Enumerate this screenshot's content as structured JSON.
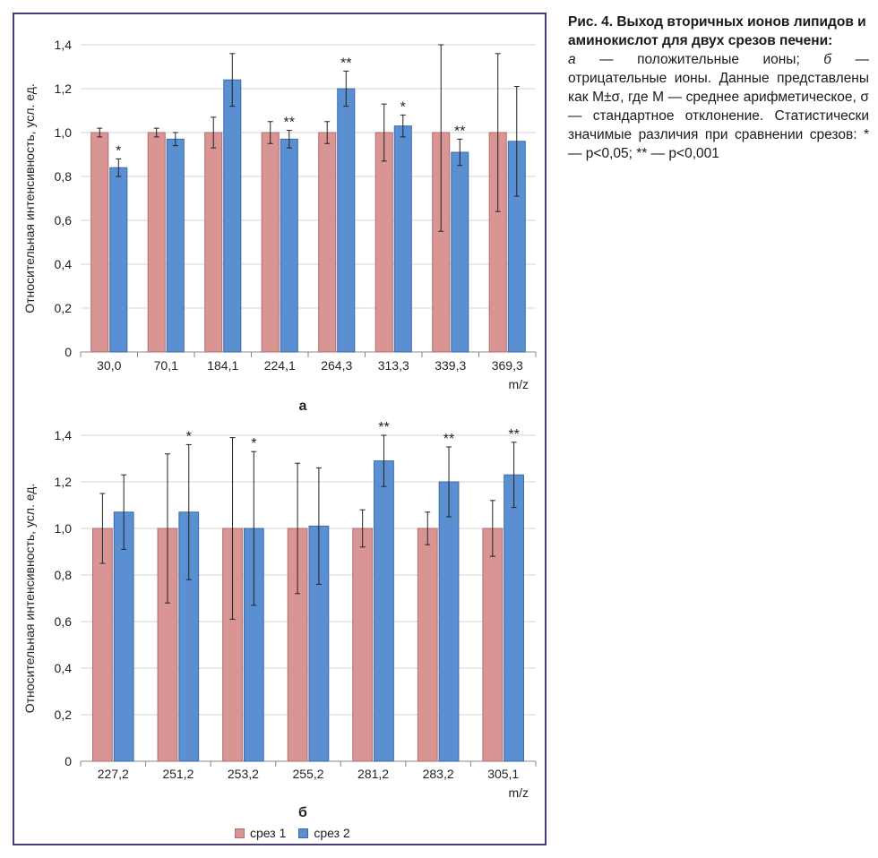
{
  "colors": {
    "series1": "#d99593",
    "series1_edge": "#b36d6b",
    "series2": "#5a8fd2",
    "series2_edge": "#3d6aa8",
    "frame": "#4a3d7a"
  },
  "caption": {
    "title": "Рис. 4. Выход вторичных ионов липидов и аминокислот для двух срезов печени:",
    "part_a_label": "а",
    "part_a_text": " — положительные ионы; ",
    "part_b_label": "б",
    "part_b_text": " — отрицательные ионы. Данные представлены как M±σ, где M — среднее арифметическое, σ — стандартное отклонение. Статистически значимые различия при сравнении срезов: * — p<0,05; ** — p<0,001"
  },
  "legend": [
    {
      "name": "срез 1"
    },
    {
      "name": "срез 2"
    }
  ],
  "chart_data": [
    {
      "type": "bar",
      "panel_label": "а",
      "ylabel": "Относительная интенсивность, усл. ед.",
      "xlabel": "m/z",
      "ylim": [
        0,
        1.4
      ],
      "yticks": [
        "0",
        "0,2",
        "0,4",
        "0,6",
        "0,8",
        "1,0",
        "1,2",
        "1,4"
      ],
      "grid": true,
      "categories": [
        "30,0",
        "70,1",
        "184,1",
        "224,1",
        "264,3",
        "313,3",
        "339,3",
        "369,3"
      ],
      "series": [
        {
          "name": "срез 1",
          "values": [
            1.0,
            1.0,
            1.0,
            1.0,
            1.0,
            1.0,
            1.0,
            1.0
          ],
          "errors": [
            0.02,
            0.02,
            0.07,
            0.05,
            0.05,
            0.13,
            0.45,
            0.36
          ]
        },
        {
          "name": "срез 2",
          "values": [
            0.84,
            0.97,
            1.24,
            0.97,
            1.2,
            1.03,
            0.91,
            0.96
          ],
          "errors": [
            0.04,
            0.03,
            0.12,
            0.04,
            0.08,
            0.05,
            0.06,
            0.25
          ]
        }
      ],
      "significance": [
        "*",
        "",
        "",
        "**",
        "**",
        "*",
        "**",
        ""
      ]
    },
    {
      "type": "bar",
      "panel_label": "б",
      "ylabel": "Относительная интенсивность, усл. ед.",
      "xlabel": "m/z",
      "ylim": [
        0,
        1.4
      ],
      "yticks": [
        "0",
        "0,2",
        "0,4",
        "0,6",
        "0,8",
        "1,0",
        "1,2",
        "1,4"
      ],
      "grid": true,
      "categories": [
        "227,2",
        "251,2",
        "253,2",
        "255,2",
        "281,2",
        "283,2",
        "305,1"
      ],
      "series": [
        {
          "name": "срез 1",
          "values": [
            1.0,
            1.0,
            1.0,
            1.0,
            1.0,
            1.0,
            1.0
          ],
          "errors": [
            0.15,
            0.32,
            0.39,
            0.28,
            0.08,
            0.07,
            0.12
          ]
        },
        {
          "name": "срез 2",
          "values": [
            1.07,
            1.07,
            1.0,
            1.01,
            1.29,
            1.2,
            1.23
          ],
          "errors": [
            0.16,
            0.29,
            0.33,
            0.25,
            0.11,
            0.15,
            0.14
          ]
        }
      ],
      "significance": [
        "",
        "*",
        "*",
        "",
        "**",
        "**",
        "**"
      ]
    }
  ]
}
